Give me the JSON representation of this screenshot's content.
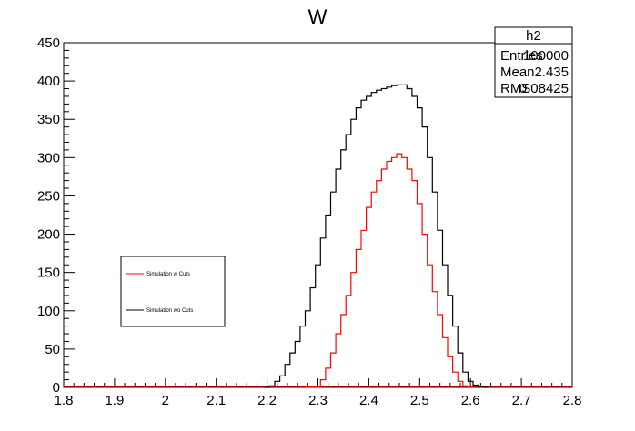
{
  "chart_data": {
    "type": "histogram",
    "title": "W",
    "xlim": [
      1.8,
      2.8
    ],
    "ylim": [
      0,
      450
    ],
    "x_ticks": [
      "1.8",
      "1.9",
      "2",
      "2.1",
      "2.2",
      "2.3",
      "2.4",
      "2.5",
      "2.6",
      "2.7",
      "2.8"
    ],
    "y_ticks": [
      "0",
      "50",
      "100",
      "150",
      "200",
      "250",
      "300",
      "350",
      "400",
      "450"
    ],
    "grid": false,
    "legend_placement": "middle-left",
    "stats_box": {
      "name": "h2",
      "rows": [
        {
          "label": "Entries",
          "value": "100000"
        },
        {
          "label": "Mean",
          "value": "2.435"
        },
        {
          "label": "RMS",
          "value": "0.08425"
        }
      ]
    },
    "series": [
      {
        "name": "Simulation w Cuts",
        "color": "#ff0000",
        "x": [
          2.28,
          2.29,
          2.3,
          2.31,
          2.32,
          2.33,
          2.34,
          2.35,
          2.36,
          2.37,
          2.38,
          2.39,
          2.4,
          2.41,
          2.42,
          2.43,
          2.44,
          2.45,
          2.46,
          2.47,
          2.48,
          2.49,
          2.5,
          2.51,
          2.52,
          2.53,
          2.54,
          2.55,
          2.56,
          2.57,
          2.58,
          2.59,
          2.6
        ],
        "values": [
          0,
          0,
          0,
          10,
          25,
          45,
          70,
          95,
          120,
          150,
          180,
          205,
          235,
          255,
          270,
          285,
          295,
          300,
          305,
          300,
          285,
          270,
          240,
          200,
          160,
          125,
          95,
          65,
          40,
          20,
          8,
          2,
          0
        ]
      },
      {
        "name": "Simulation wo Cuts",
        "color": "#000000",
        "x": [
          2.2,
          2.21,
          2.22,
          2.23,
          2.24,
          2.25,
          2.26,
          2.27,
          2.28,
          2.29,
          2.3,
          2.31,
          2.32,
          2.33,
          2.34,
          2.35,
          2.36,
          2.37,
          2.38,
          2.39,
          2.4,
          2.41,
          2.42,
          2.43,
          2.44,
          2.45,
          2.46,
          2.47,
          2.48,
          2.49,
          2.5,
          2.51,
          2.52,
          2.53,
          2.54,
          2.55,
          2.56,
          2.57,
          2.58,
          2.59,
          2.6,
          2.61,
          2.62,
          2.63
        ],
        "values": [
          0,
          2,
          8,
          15,
          30,
          45,
          60,
          80,
          100,
          130,
          160,
          195,
          225,
          255,
          285,
          310,
          330,
          350,
          365,
          375,
          380,
          385,
          388,
          390,
          392,
          394,
          395,
          395,
          390,
          380,
          365,
          340,
          300,
          255,
          205,
          160,
          120,
          80,
          45,
          20,
          8,
          3,
          1,
          0
        ]
      }
    ]
  }
}
